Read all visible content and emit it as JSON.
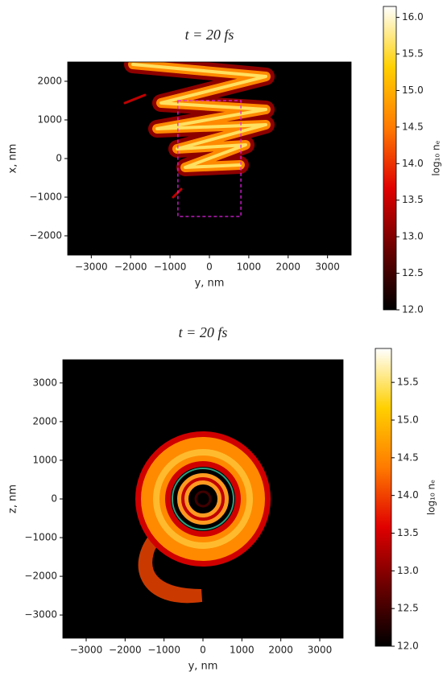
{
  "chart_data": [
    {
      "type": "heatmap",
      "title": "t = 20 fs",
      "x_label": "y, nm",
      "y_label": "x, nm",
      "xlim": [
        -3600,
        3600
      ],
      "xticks": [
        {
          "value": -3000,
          "label": "−3000"
        },
        {
          "value": -2000,
          "label": "−2000"
        },
        {
          "value": -1000,
          "label": "−1000"
        },
        0,
        1000,
        2000,
        3000
      ],
      "ylim": [
        -2500,
        2500
      ],
      "yticks": [
        {
          "value": -2000,
          "label": "−2000"
        },
        {
          "value": -1000,
          "label": "−1000"
        },
        0,
        1000,
        2000
      ],
      "colorbar_label": "log₁₀ nₑ",
      "clim": [
        12,
        16.15
      ],
      "cticks": [
        {
          "value": 12,
          "label": "12.0"
        },
        12.5,
        {
          "value": 13,
          "label": "13.0"
        },
        13.5,
        {
          "value": 14,
          "label": "14.0"
        },
        14.5,
        {
          "value": 15,
          "label": "15.0"
        },
        15.5,
        {
          "value": 16,
          "label": "16.0"
        }
      ],
      "colormap": [
        "#000000",
        "#6a0000",
        "#e00000",
        "#ff7a00",
        "#ffd000",
        "#ffffff"
      ],
      "box": {
        "x": [
          -800,
          800
        ],
        "y": [
          -1500,
          1500
        ],
        "color": "#e020e0"
      }
    },
    {
      "type": "heatmap",
      "title": "t = 20 fs",
      "x_label": "y, nm",
      "y_label": "z, nm",
      "xlim": [
        -3600,
        3600
      ],
      "xticks": [
        {
          "value": -3000,
          "label": "−3000"
        },
        {
          "value": -2000,
          "label": "−2000"
        },
        {
          "value": -1000,
          "label": "−1000"
        },
        0,
        1000,
        2000,
        3000
      ],
      "ylim": [
        -3600,
        3600
      ],
      "yticks": [
        {
          "value": -3000,
          "label": "−3000"
        },
        {
          "value": -2000,
          "label": "−2000"
        },
        {
          "value": -1000,
          "label": "−1000"
        },
        0,
        1000,
        2000,
        3000
      ],
      "colorbar_label": "log₁₀ nₑ",
      "clim": [
        12,
        15.95
      ],
      "cticks": [
        {
          "value": 12,
          "label": "12.0"
        },
        12.5,
        {
          "value": 13,
          "label": "13.0"
        },
        13.5,
        {
          "value": 14,
          "label": "14.0"
        },
        14.5,
        {
          "value": 15,
          "label": "15.0"
        },
        15.5
      ],
      "colormap": [
        "#000000",
        "#6a0000",
        "#e00000",
        "#ff7a00",
        "#ffd000",
        "#ffffff"
      ]
    }
  ]
}
